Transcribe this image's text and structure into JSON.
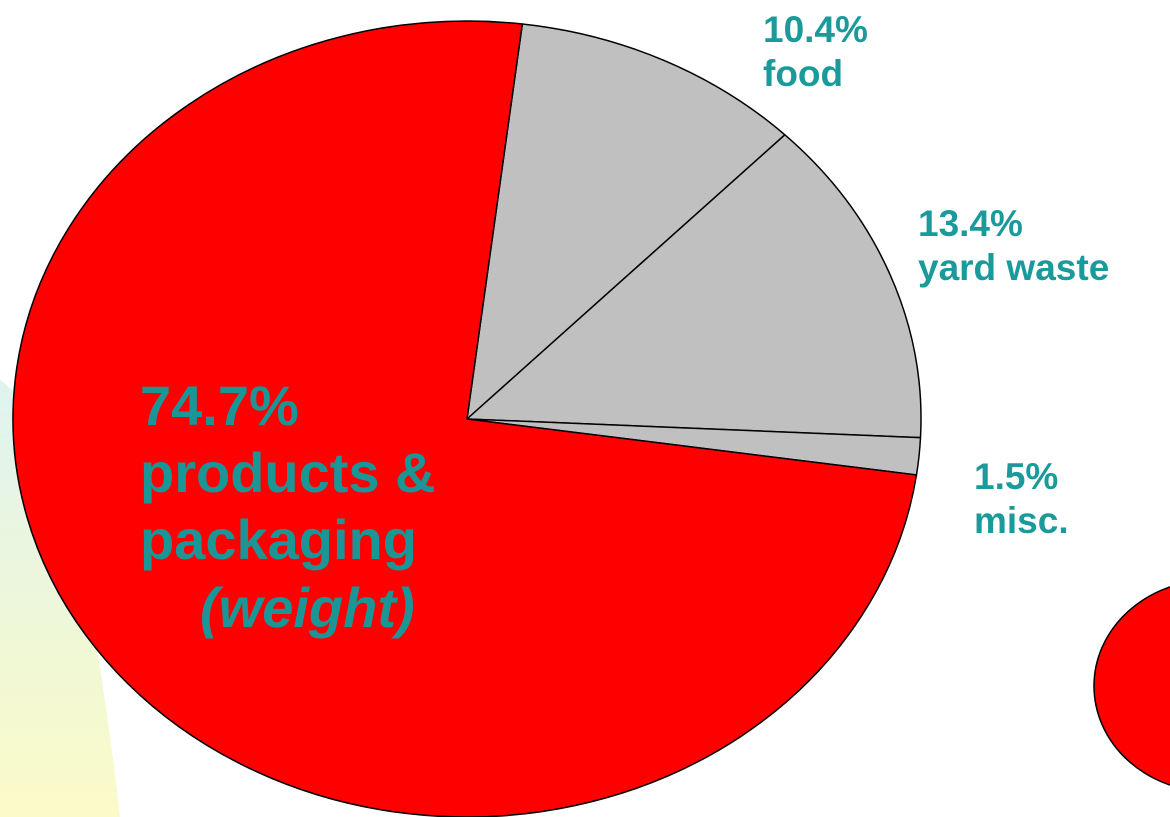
{
  "chart_data": {
    "type": "pie",
    "slices": [
      {
        "label": "food",
        "value": 10.4,
        "display": "10.4%",
        "color": "#c0c0c0"
      },
      {
        "label": "yard waste",
        "value": 13.4,
        "display": "13.4%",
        "color": "#c0c0c0"
      },
      {
        "label": "misc.",
        "value": 1.5,
        "display": "1.5%",
        "color": "#c0c0c0"
      },
      {
        "label": "products &",
        "label_line2": "packaging",
        "note": "(weight)",
        "value": 74.7,
        "display": "74.7%",
        "color": "#ff0000"
      }
    ],
    "start_angle_deg": -83,
    "direction": "clockwise",
    "label_color": "#1a9a9a",
    "outline_color": "#000000",
    "legend": "none",
    "partial_second_pie": {
      "color": "#ff0000",
      "placement": "bottom-right, cropped"
    }
  }
}
